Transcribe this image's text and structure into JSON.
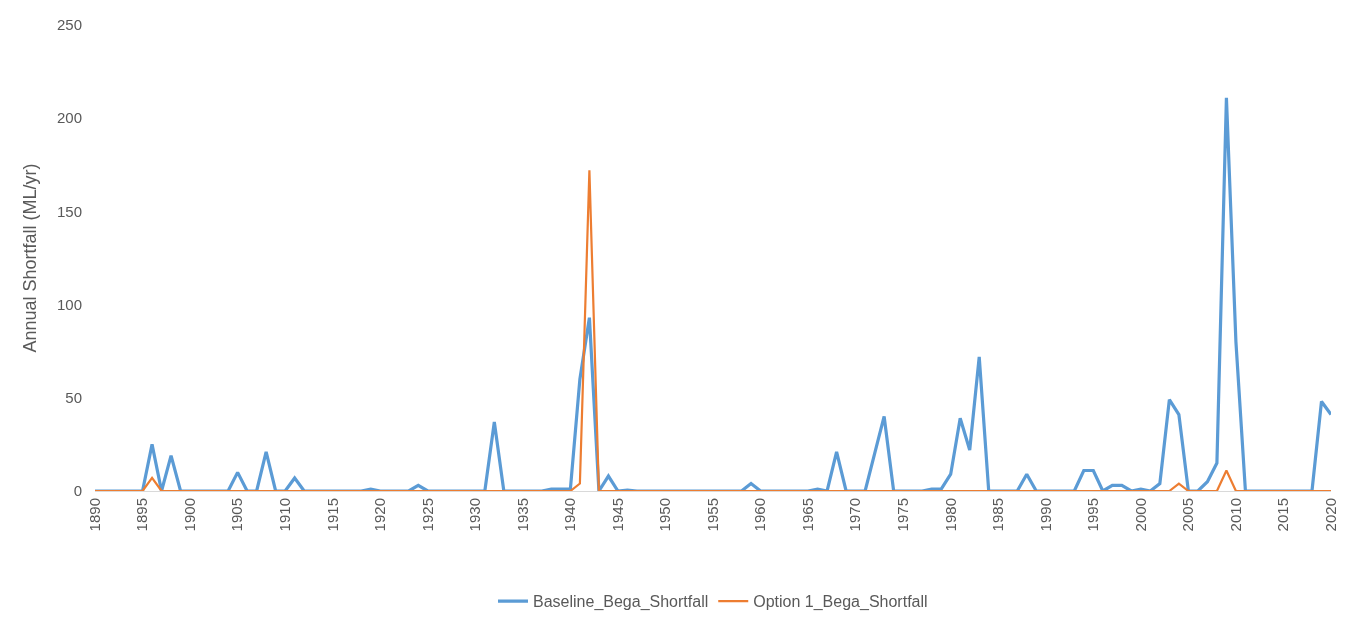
{
  "chart_data": {
    "type": "line",
    "ylabel": "Annual Shortfall (ML/yr)",
    "x": [
      1890,
      1891,
      1892,
      1893,
      1894,
      1895,
      1896,
      1897,
      1898,
      1899,
      1900,
      1901,
      1902,
      1903,
      1904,
      1905,
      1906,
      1907,
      1908,
      1909,
      1910,
      1911,
      1912,
      1913,
      1914,
      1915,
      1916,
      1917,
      1918,
      1919,
      1920,
      1921,
      1922,
      1923,
      1924,
      1925,
      1926,
      1927,
      1928,
      1929,
      1930,
      1931,
      1932,
      1933,
      1934,
      1935,
      1936,
      1937,
      1938,
      1939,
      1940,
      1941,
      1942,
      1943,
      1944,
      1945,
      1946,
      1947,
      1948,
      1949,
      1950,
      1951,
      1952,
      1953,
      1954,
      1955,
      1956,
      1957,
      1958,
      1959,
      1960,
      1961,
      1962,
      1963,
      1964,
      1965,
      1966,
      1967,
      1968,
      1969,
      1970,
      1971,
      1972,
      1973,
      1974,
      1975,
      1976,
      1977,
      1978,
      1979,
      1980,
      1981,
      1982,
      1983,
      1984,
      1985,
      1986,
      1987,
      1988,
      1989,
      1990,
      1991,
      1992,
      1993,
      1994,
      1995,
      1996,
      1997,
      1998,
      1999,
      2000,
      2001,
      2002,
      2003,
      2004,
      2005,
      2006,
      2007,
      2008,
      2009,
      2010,
      2011,
      2012,
      2013,
      2014,
      2015,
      2016,
      2017,
      2018,
      2019,
      2020
    ],
    "series": [
      {
        "name": "Baseline_Bega_Shortfall",
        "color": "#5b9bd5",
        "values": [
          0,
          0,
          0,
          0,
          0,
          0,
          25,
          0,
          19,
          0,
          0,
          0,
          0,
          0,
          0,
          10,
          0,
          0,
          21,
          0,
          0,
          7,
          0,
          0,
          0,
          0,
          0,
          0,
          0,
          1,
          0,
          0,
          0,
          0,
          3,
          0,
          0,
          0,
          0,
          0,
          0,
          0,
          37,
          0,
          0,
          0,
          0,
          0,
          1,
          1,
          1,
          60,
          93,
          0,
          8,
          0,
          0.5,
          0,
          0,
          0,
          0,
          0,
          0,
          0,
          0,
          0,
          0,
          0,
          0,
          4,
          0,
          0,
          0,
          0,
          0,
          0,
          1,
          0,
          21,
          0,
          0,
          0,
          20,
          40,
          0,
          0,
          0,
          0,
          1,
          1,
          9,
          39,
          22,
          72,
          0,
          0,
          0,
          0,
          9,
          0,
          0,
          0,
          0,
          0,
          11,
          11,
          0,
          3,
          3,
          0,
          1,
          0,
          4,
          49,
          41,
          0,
          0,
          5,
          15,
          211,
          80,
          0,
          0,
          0,
          0,
          0,
          0,
          0,
          0,
          48,
          41
        ]
      },
      {
        "name": "Option 1_Bega_Shortfall",
        "color": "#ed7d31",
        "values": [
          0,
          0,
          0,
          0,
          0,
          0,
          7,
          0,
          0,
          0,
          0,
          0,
          0,
          0,
          0,
          0,
          0,
          0,
          0,
          0,
          0,
          0,
          0,
          0,
          0,
          0,
          0,
          0,
          0,
          0,
          0,
          0,
          0,
          0,
          0,
          0,
          0,
          0,
          0,
          0,
          0,
          0,
          0,
          0,
          0,
          0,
          0,
          0,
          0,
          0,
          0,
          4,
          172,
          0,
          0,
          0,
          0,
          0,
          0,
          0,
          0,
          0,
          0,
          0,
          0,
          0,
          0,
          0,
          0,
          0,
          0,
          0,
          0,
          0,
          0,
          0,
          0,
          0,
          0,
          0,
          0,
          0,
          0,
          0,
          0,
          0,
          0,
          0,
          0,
          0,
          0,
          0,
          0,
          0,
          0,
          0,
          0,
          0,
          0,
          0,
          0,
          0,
          0,
          0,
          0,
          0,
          0,
          0,
          0,
          0,
          0,
          0,
          0,
          0,
          4,
          0,
          0,
          0,
          0,
          11,
          0,
          0,
          0,
          0,
          0,
          0,
          0,
          0,
          0,
          0,
          0
        ]
      }
    ],
    "xlim": [
      1890,
      2020
    ],
    "xticks": [
      1890,
      1895,
      1900,
      1905,
      1910,
      1915,
      1920,
      1925,
      1930,
      1935,
      1940,
      1945,
      1950,
      1955,
      1960,
      1965,
      1970,
      1975,
      1980,
      1985,
      1990,
      1995,
      2000,
      2005,
      2010,
      2015,
      2020
    ],
    "ylim": [
      0,
      250
    ],
    "yticks": [
      0,
      50,
      100,
      150,
      200,
      250
    ],
    "grid": false,
    "legend": "bottom",
    "marker": "none",
    "line_style": "solid"
  }
}
